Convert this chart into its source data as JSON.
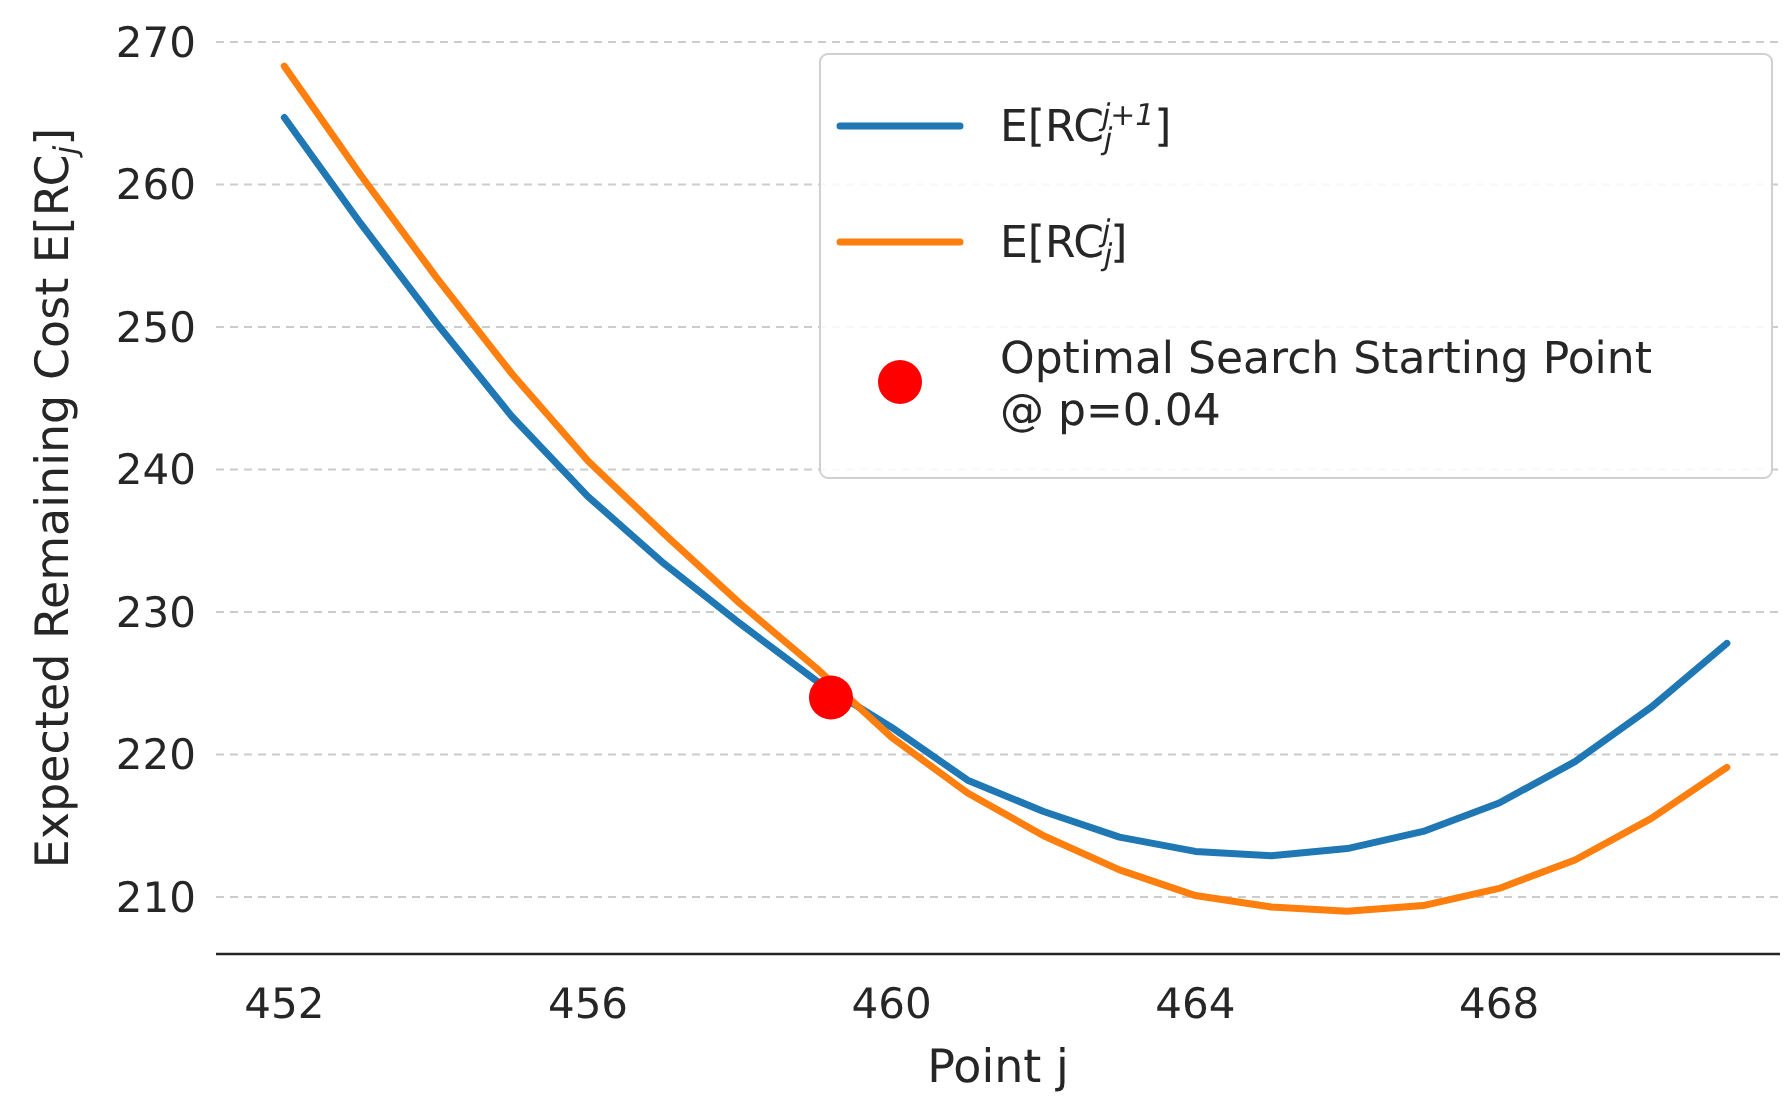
{
  "chart_data": {
    "type": "line",
    "xlabel": "Point j",
    "ylabel": "Expected Remaining Cost E[RC$_{j}$]",
    "x": [
      452,
      453,
      454,
      455,
      456,
      457,
      458,
      459,
      460,
      461,
      462,
      463,
      464,
      465,
      466,
      467,
      468,
      469,
      470,
      471
    ],
    "series": [
      {
        "name": "E[RC$_{j}$$^{j+1}$]",
        "color": "#1f77b4",
        "values": [
          264.7,
          257.3,
          250.3,
          243.7,
          238.1,
          233.4,
          229.2,
          225.2,
          221.9,
          218.2,
          216.0,
          214.2,
          213.2,
          212.9,
          213.4,
          214.6,
          216.6,
          219.5,
          223.3,
          227.8
        ]
      },
      {
        "name": "E[RC$_{j}$$^{j}$]",
        "color": "#ff7f0e",
        "values": [
          268.3,
          260.7,
          253.5,
          246.7,
          240.6,
          235.5,
          230.6,
          226.1,
          221.2,
          217.3,
          214.3,
          211.9,
          210.1,
          209.3,
          209.0,
          209.4,
          210.6,
          212.6,
          215.5,
          219.1
        ]
      },
      {
        "type": "scatter",
        "marker": "circle",
        "name": "Optimal Search Starting Point\n@ p=0.04",
        "color": "#ff0000",
        "x": [
          459.2
        ],
        "values": [
          224.0
        ]
      }
    ],
    "xlim": [
      451.1,
      471.7
    ],
    "ylim": [
      206,
      270
    ],
    "xticks": [
      452,
      456,
      460,
      464,
      468
    ],
    "yticks": [
      210,
      220,
      230,
      240,
      250,
      260,
      270
    ],
    "grid": "y",
    "legend": "top right",
    "line_style": "solid"
  }
}
